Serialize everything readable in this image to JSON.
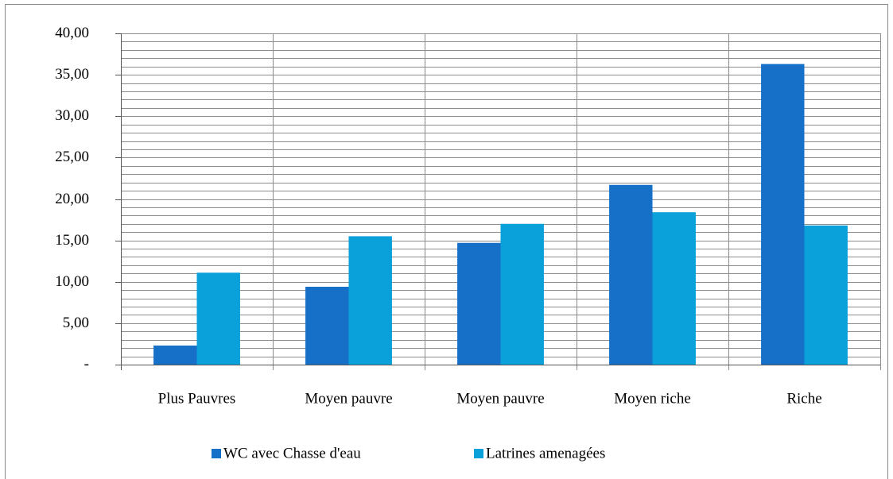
{
  "chart_data": {
    "type": "bar",
    "categories": [
      "Plus Pauvres",
      "Moyen pauvre",
      "Moyen pauvre",
      "Moyen riche",
      "Riche"
    ],
    "series": [
      {
        "name": "WC avec Chasse d'eau",
        "color": "#1770c8",
        "values": [
          2.3,
          9.4,
          14.7,
          21.7,
          36.3
        ]
      },
      {
        "name": "Latrines amenagées",
        "color": "#0aa0da",
        "values": [
          11.1,
          15.5,
          17.0,
          18.4,
          16.8
        ]
      }
    ],
    "ylim": [
      0,
      40
    ],
    "yticks": [
      {
        "value": 0,
        "label": "-"
      },
      {
        "value": 5,
        "label": "5,00"
      },
      {
        "value": 10,
        "label": "10,00"
      },
      {
        "value": 15,
        "label": "15,00"
      },
      {
        "value": 20,
        "label": "20,00"
      },
      {
        "value": 25,
        "label": "25,00"
      },
      {
        "value": 30,
        "label": "30,00"
      },
      {
        "value": 35,
        "label": "35,00"
      },
      {
        "value": 40,
        "label": "40,00"
      }
    ],
    "grid": true,
    "minor_grid": 1,
    "legend": "bottom"
  }
}
